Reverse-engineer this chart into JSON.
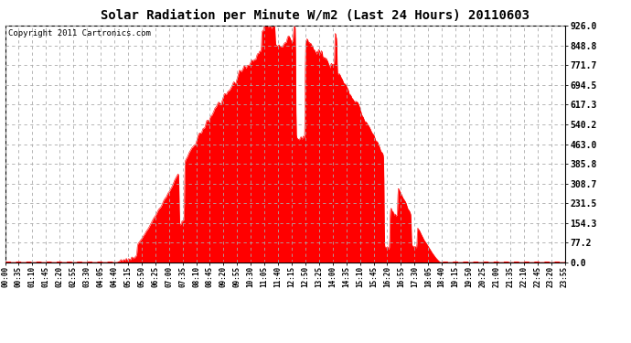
{
  "title": "Solar Radiation per Minute W/m2 (Last 24 Hours) 20110603",
  "copyright": "Copyright 2011 Cartronics.com",
  "yticks": [
    0.0,
    77.2,
    154.3,
    231.5,
    308.7,
    385.8,
    463.0,
    540.2,
    617.3,
    694.5,
    771.7,
    848.8,
    926.0
  ],
  "ymax": 926.0,
  "ymin": 0.0,
  "fill_color": "#FF0000",
  "line_color": "#FF0000",
  "dashed_line_color": "#FF0000",
  "grid_color": "#C8C8C8",
  "bg_color": "#FFFFFF",
  "title_fontsize": 10,
  "copyright_fontsize": 6.5,
  "xtick_labels": [
    "00:00",
    "00:35",
    "01:10",
    "01:45",
    "02:20",
    "02:55",
    "03:30",
    "04:05",
    "04:40",
    "05:15",
    "05:50",
    "06:25",
    "07:00",
    "07:35",
    "08:10",
    "08:45",
    "09:20",
    "09:55",
    "10:30",
    "11:05",
    "11:40",
    "12:15",
    "12:50",
    "13:25",
    "14:00",
    "14:35",
    "15:10",
    "15:45",
    "16:20",
    "16:55",
    "17:30",
    "18:05",
    "18:40",
    "19:15",
    "19:50",
    "20:25",
    "21:00",
    "21:35",
    "22:10",
    "22:45",
    "23:20",
    "23:55"
  ]
}
